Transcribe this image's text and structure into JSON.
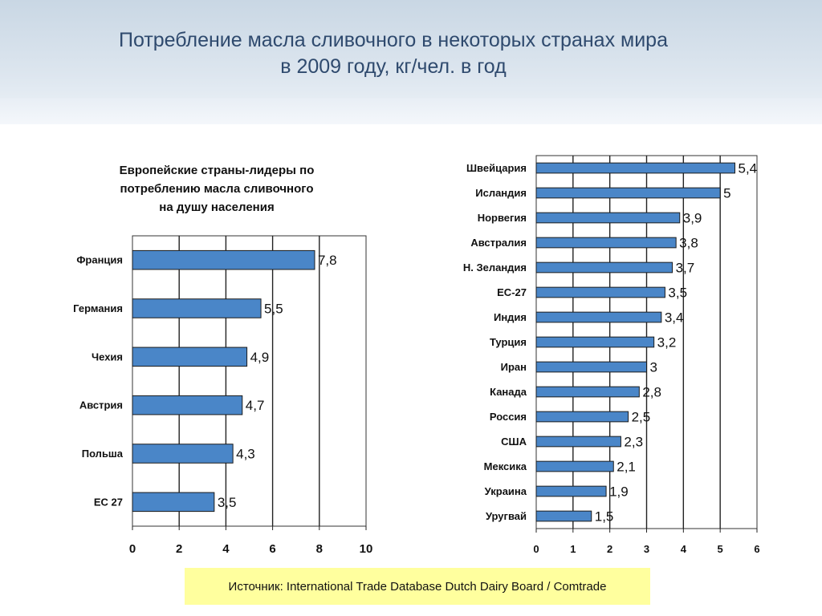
{
  "slide": {
    "title_line1": "Потребление масла сливочного в некоторых странах мира",
    "title_line2": "в 2009 году, кг/чел. в год",
    "source": "Источник: International Trade Database Dutch Dairy Board / Comtrade"
  },
  "colors": {
    "bar": "#4a86c8",
    "bar_edge": "#1c1c1c",
    "source_bg": "#ffff9e",
    "title": "#2f4a6e"
  },
  "chart_data": [
    {
      "type": "bar",
      "orientation": "horizontal",
      "title_line1": "Европейские страны-лидеры по",
      "title_line2": "потреблению масла сливочного",
      "title_line3": "на душу населения",
      "categories": [
        "Франция",
        "Германия",
        "Чехия",
        "Австрия",
        "Польша",
        "ЕС 27"
      ],
      "values": [
        7.8,
        5.5,
        4.9,
        4.7,
        4.3,
        3.5
      ],
      "value_labels": [
        "7,8",
        "5,5",
        "4,9",
        "4,7",
        "4,3",
        "3,5"
      ],
      "xlim": [
        0,
        10
      ],
      "ticks": [
        0,
        2,
        4,
        6,
        8,
        10
      ],
      "tick_labels": [
        "0",
        "2",
        "4",
        "6",
        "8",
        "10"
      ],
      "grid": true
    },
    {
      "type": "bar",
      "orientation": "horizontal",
      "categories": [
        "Швейцария",
        "Исландия",
        "Норвегия",
        "Австралия",
        "Н. Зеландия",
        "ЕС-27",
        "Индия",
        "Турция",
        "Иран",
        "Канада",
        "Россия",
        "США",
        "Мексика",
        "Украина",
        "Уругвай"
      ],
      "values": [
        5.4,
        5,
        3.9,
        3.8,
        3.7,
        3.5,
        3.4,
        3.2,
        3,
        2.8,
        2.5,
        2.3,
        2.1,
        1.9,
        1.5
      ],
      "value_labels": [
        "5,4",
        "5",
        "3,9",
        "3,8",
        "3,7",
        "3,5",
        "3,4",
        "3,2",
        "3",
        "2,8",
        "2,5",
        "2,3",
        "2,1",
        "1,9",
        "1,5"
      ],
      "xlim": [
        0,
        6
      ],
      "ticks": [
        0,
        1,
        2,
        3,
        4,
        5,
        6
      ],
      "tick_labels": [
        "0",
        "1",
        "2",
        "3",
        "4",
        "5",
        "6"
      ],
      "grid": true
    }
  ]
}
